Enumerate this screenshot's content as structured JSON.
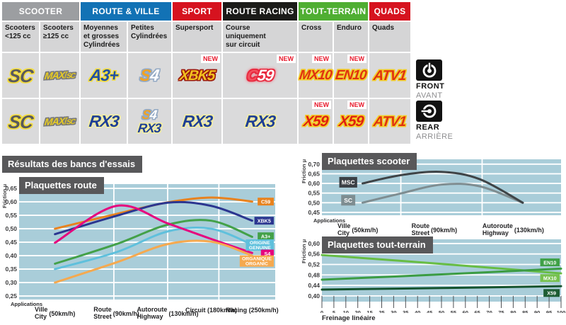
{
  "section_title": "Résultats des bancs d'essais",
  "table": {
    "new_badge": "NEW",
    "groups": [
      {
        "label": "SCOOTER",
        "color": "#9c9ea1",
        "span": 2
      },
      {
        "label": "ROUTE & VILLE",
        "color": "#1272b5",
        "span": 2
      },
      {
        "label": "SPORT",
        "color": "#d6131f",
        "span": 1
      },
      {
        "label": "ROUTE RACING",
        "color": "#1b1b19",
        "span": 1
      },
      {
        "label": "TOUT-TERRAIN",
        "color": "#4fae32",
        "span": 2
      },
      {
        "label": "QUADS",
        "color": "#d6131f",
        "span": 1
      }
    ],
    "subheaders": [
      "Scooters\n<125 cc",
      "Scooters\n≥125 cc",
      "Moyennes\net grosses\nCylindrées",
      "Petites\nCylindrées",
      "Supersport",
      "Course\nuniquement\nsur circuit",
      "Cross",
      "Enduro",
      "Quads"
    ],
    "front": [
      {
        "product": "SC"
      },
      {
        "product": "MAXI-SC"
      },
      {
        "product": "A3+"
      },
      {
        "product": "S4"
      },
      {
        "product": "XBK5",
        "new": true
      },
      {
        "product": "C59",
        "new": true
      },
      {
        "product": "MX10",
        "new": true
      },
      {
        "product": "EN10",
        "new": true
      },
      {
        "product": "ATV1"
      }
    ],
    "rear": [
      {
        "product": "SC"
      },
      {
        "product": "MAXI-SC"
      },
      {
        "product": "RX3"
      },
      {
        "products": [
          "S4",
          "RX3"
        ]
      },
      {
        "product": "RX3"
      },
      {
        "product": "RX3"
      },
      {
        "product": "X59",
        "new": true
      },
      {
        "product": "X59",
        "new": true
      },
      {
        "product": "ATV1"
      }
    ],
    "front_label": {
      "en": "FRONT",
      "fr": "AVANT"
    },
    "rear_label": {
      "en": "REAR",
      "fr": "ARRIÈRE"
    }
  },
  "chart_data": [
    {
      "id": "route",
      "type": "line",
      "title": "Plaquettes route",
      "ylabel": "Friction μ",
      "applications_label": "Applications",
      "ylim": [
        0.237,
        0.666
      ],
      "yticks": [
        0.25,
        0.3,
        0.35,
        0.4,
        0.45,
        0.5,
        0.55,
        0.6,
        0.65
      ],
      "vgrid": [
        0.37,
        0.58,
        0.78
      ],
      "grid": true,
      "legend_position": "right-inside",
      "x_categories": [
        {
          "fr": "Ville",
          "en": "City",
          "speed": "(50km/h)",
          "pos": 0.14
        },
        {
          "fr": "Route",
          "en": "Street",
          "speed": "(90km/h)",
          "pos": 0.38
        },
        {
          "fr": "Autoroute",
          "en": "Highway",
          "speed": "(130km/h)",
          "pos": 0.58
        },
        {
          "fr": "Circuit (180km/h)",
          "pos": 0.75
        },
        {
          "fr": "Racing (250km/h)",
          "pos": 0.91
        }
      ],
      "series": [
        {
          "name": "C59",
          "color": "#e8821e",
          "x": [
            0.14,
            0.38,
            0.58,
            0.75,
            0.91
          ],
          "values": [
            0.5,
            0.555,
            0.598,
            0.616,
            0.601
          ],
          "chip": {
            "lines": [
              "C59"
            ],
            "y": 0.601
          }
        },
        {
          "name": "XBK5",
          "color": "#2b3690",
          "x": [
            0.14,
            0.38,
            0.58,
            0.75,
            0.91
          ],
          "values": [
            0.48,
            0.548,
            0.597,
            0.585,
            0.53
          ],
          "chip": {
            "lines": [
              "XBK5"
            ],
            "y": 0.53
          }
        },
        {
          "name": "A3+",
          "color": "#43a149",
          "x": [
            0.14,
            0.38,
            0.58,
            0.75,
            0.91
          ],
          "values": [
            0.37,
            0.443,
            0.515,
            0.53,
            0.47
          ],
          "chip": {
            "lines": [
              "A3+"
            ],
            "y": 0.472
          }
        },
        {
          "name": "ORIGINE / GENUINE",
          "color": "#5fc0dc",
          "x": [
            0.14,
            0.38,
            0.58,
            0.75,
            0.91
          ],
          "values": [
            0.35,
            0.413,
            0.49,
            0.5,
            0.441
          ],
          "chip": {
            "lines": [
              "ORIGINE",
              "GENUINE"
            ],
            "y": 0.4395
          }
        },
        {
          "name": "S4",
          "color": "#e5067e",
          "x": [
            0.14,
            0.38,
            0.58,
            0.75,
            0.91
          ],
          "values": [
            0.448,
            0.585,
            0.52,
            0.462,
            0.41
          ],
          "chip": {
            "lines": [
              "S4"
            ],
            "y": 0.408
          }
        },
        {
          "name": "ORGANIQUE / ORGANIC",
          "color": "#f5a94f",
          "x": [
            0.14,
            0.38,
            0.58,
            0.75,
            0.91
          ],
          "values": [
            0.3,
            0.375,
            0.443,
            0.452,
            0.4
          ],
          "chip": {
            "lines": [
              "ORGANIQUE",
              "ORGANIC"
            ],
            "y": 0.38
          }
        }
      ]
    },
    {
      "id": "scooter",
      "type": "line",
      "title": "Plaquettes scooter",
      "ylabel": "Friction μ",
      "applications_label": "Applications",
      "ylim": [
        0.435,
        0.725
      ],
      "yticks": [
        0.45,
        0.5,
        0.55,
        0.6,
        0.65,
        0.7
      ],
      "vgrid": [
        0.33,
        0.67
      ],
      "grid": true,
      "legend_position": "left-inside",
      "x_categories": [
        {
          "fr": "Ville",
          "en": "City",
          "speed": "(50km/h)",
          "pos": 0.15
        },
        {
          "fr": "Route",
          "en": "Street",
          "speed": "(90km/h)",
          "pos": 0.47
        },
        {
          "fr": "Autoroute",
          "en": "Highway",
          "speed": "(130km/h)",
          "pos": 0.8
        }
      ],
      "series": [
        {
          "name": "SC",
          "color": "#7e8d91",
          "x": [
            0.17,
            0.33,
            0.5,
            0.66,
            0.84
          ],
          "values": [
            0.5,
            0.548,
            0.594,
            0.585,
            0.5
          ],
          "chip": {
            "lines": [
              "SC"
            ],
            "x": 0.11,
            "y": 0.513,
            "bg": "#7e8d91"
          }
        },
        {
          "name": "MSC",
          "color": "#3f4447",
          "x": [
            0.17,
            0.33,
            0.5,
            0.66,
            0.84
          ],
          "values": [
            0.6,
            0.643,
            0.66,
            0.622,
            0.5
          ],
          "chip": {
            "lines": [
              "MSC"
            ],
            "x": 0.11,
            "y": 0.606,
            "bg": "#3b4045"
          }
        }
      ]
    },
    {
      "id": "toutterrain",
      "type": "line",
      "title": "Plaquettes tout-terrain",
      "ylabel": "Friction μ",
      "xlabel": "Freinage linéaire",
      "ylim": [
        0.378,
        0.616
      ],
      "yticks": [
        0.4,
        0.44,
        0.48,
        0.52,
        0.56,
        0.6
      ],
      "xlim": [
        0,
        100
      ],
      "xtick_labels": [
        "0",
        "5",
        "10",
        "20",
        "15",
        "25",
        "30",
        "35",
        "40",
        "45",
        "50",
        "55",
        "60",
        "65",
        "70",
        "75",
        "80",
        "85",
        "90",
        "95",
        "100"
      ],
      "grid": true,
      "legend_position": "right-inside",
      "series": [
        {
          "name": "MX10",
          "color": "#67bd44",
          "x": [
            0,
            50,
            100
          ],
          "values": [
            0.556,
            0.522,
            0.486
          ],
          "chip": {
            "lines": [
              "MX10"
            ],
            "y": 0.468,
            "bg": "#76c14e"
          }
        },
        {
          "name": "EN10",
          "color": "#3b9c43",
          "x": [
            0,
            50,
            100
          ],
          "values": [
            0.462,
            0.482,
            0.504
          ],
          "chip": {
            "lines": [
              "EN10"
            ],
            "y": 0.528,
            "bg": "#3fa047"
          }
        },
        {
          "name": "X59",
          "color": "#14532d",
          "x": [
            0,
            50,
            100
          ],
          "values": [
            0.424,
            0.43,
            0.437
          ],
          "chip": {
            "lines": [
              "X59"
            ],
            "y": 0.411,
            "bg": "#1d5c33"
          }
        }
      ]
    }
  ]
}
